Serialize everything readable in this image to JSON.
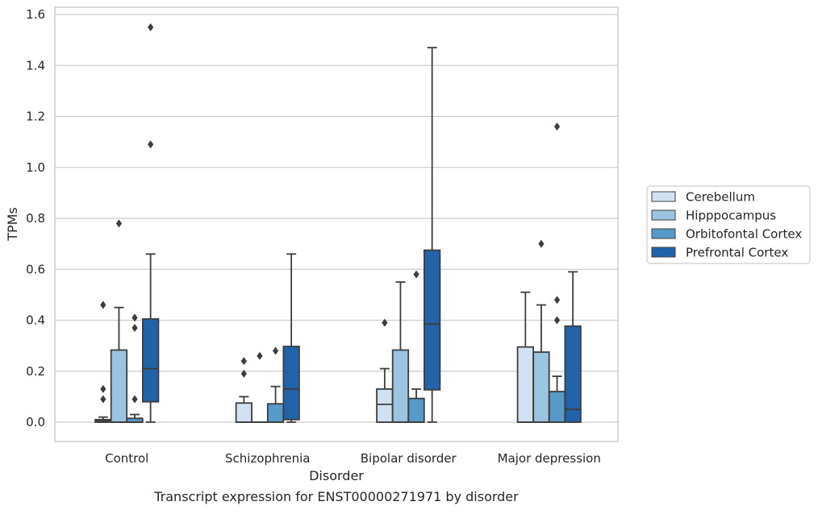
{
  "chart_data": {
    "type": "boxplot",
    "title": "Transcript expression for ENST00000271971 by disorder",
    "xlabel": "Disorder",
    "ylabel": "TPMs",
    "ylim": [
      -0.075,
      1.63
    ],
    "yticks": [
      0.0,
      0.2,
      0.4,
      0.6,
      0.8,
      1.0,
      1.2,
      1.4,
      1.6
    ],
    "ytick_labels": [
      "0.0",
      "0.2",
      "0.4",
      "0.6",
      "0.8",
      "1.0",
      "1.2",
      "1.4",
      "1.6"
    ],
    "grid": "horizontal",
    "legend_position": "right",
    "categories": [
      "Control",
      "Schizophrenia",
      "Bipolar disorder",
      "Major depression"
    ],
    "series": [
      {
        "name": "Cerebellum",
        "color": "#d2e1f1",
        "boxes": [
          {
            "whisker_low": 0.0,
            "q1": 0.0,
            "median": 0.005,
            "q3": 0.01,
            "whisker_high": 0.02,
            "outliers": [
              0.09,
              0.13,
              0.46
            ]
          },
          {
            "whisker_low": 0.0,
            "q1": 0.0,
            "median": 0.0,
            "q3": 0.075,
            "whisker_high": 0.1,
            "outliers": [
              0.19,
              0.24
            ]
          },
          {
            "whisker_low": 0.0,
            "q1": 0.0,
            "median": 0.07,
            "q3": 0.13,
            "whisker_high": 0.21,
            "outliers": [
              0.39
            ]
          },
          {
            "whisker_low": 0.0,
            "q1": 0.0,
            "median": 0.0,
            "q3": 0.295,
            "whisker_high": 0.51,
            "outliers": []
          }
        ]
      },
      {
        "name": "Hipppocampus",
        "color": "#9ac4df",
        "boxes": [
          {
            "whisker_low": 0.0,
            "q1": 0.0,
            "median": 0.0,
            "q3": 0.283,
            "whisker_high": 0.45,
            "outliers": [
              0.78
            ]
          },
          {
            "whisker_low": 0.0,
            "q1": 0.0,
            "median": 0.0,
            "q3": 0.0,
            "whisker_high": 0.0,
            "outliers": [
              0.26
            ]
          },
          {
            "whisker_low": 0.0,
            "q1": 0.0,
            "median": 0.0,
            "q3": 0.283,
            "whisker_high": 0.55,
            "outliers": []
          },
          {
            "whisker_low": 0.0,
            "q1": 0.0,
            "median": 0.0,
            "q3": 0.275,
            "whisker_high": 0.46,
            "outliers": [
              0.7
            ]
          }
        ]
      },
      {
        "name": "Orbitofontal Cortex",
        "color": "#5799c7",
        "boxes": [
          {
            "whisker_low": 0.0,
            "q1": 0.0,
            "median": 0.0,
            "q3": 0.015,
            "whisker_high": 0.03,
            "outliers": [
              0.09,
              0.37,
              0.41
            ]
          },
          {
            "whisker_low": 0.0,
            "q1": 0.0,
            "median": 0.0,
            "q3": 0.072,
            "whisker_high": 0.14,
            "outliers": [
              0.28
            ]
          },
          {
            "whisker_low": 0.0,
            "q1": 0.0,
            "median": 0.0,
            "q3": 0.093,
            "whisker_high": 0.13,
            "outliers": [
              0.58
            ]
          },
          {
            "whisker_low": 0.0,
            "q1": 0.0,
            "median": 0.0,
            "q3": 0.12,
            "whisker_high": 0.18,
            "outliers": [
              0.4,
              0.48,
              1.16
            ]
          }
        ]
      },
      {
        "name": "Prefrontal Cortex",
        "color": "#2163a8",
        "boxes": [
          {
            "whisker_low": 0.0,
            "q1": 0.08,
            "median": 0.21,
            "q3": 0.405,
            "whisker_high": 0.66,
            "outliers": [
              1.09,
              1.55
            ]
          },
          {
            "whisker_low": 0.0,
            "q1": 0.01,
            "median": 0.13,
            "q3": 0.297,
            "whisker_high": 0.66,
            "outliers": []
          },
          {
            "whisker_low": 0.0,
            "q1": 0.127,
            "median": 0.385,
            "q3": 0.675,
            "whisker_high": 1.47,
            "outliers": []
          },
          {
            "whisker_low": 0.0,
            "q1": 0.0,
            "median": 0.05,
            "q3": 0.377,
            "whisker_high": 0.59,
            "outliers": []
          }
        ]
      }
    ]
  },
  "colors": {
    "grid": "#cccccc",
    "frame": "#cccccc",
    "box_edge": "#3d3d3d",
    "text": "#262626"
  }
}
